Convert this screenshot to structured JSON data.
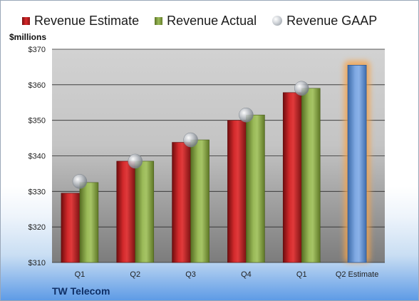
{
  "legend": {
    "estimate": "Revenue Estimate",
    "actual": "Revenue Actual",
    "gaap": "Revenue GAAP"
  },
  "unit_label": "$millions",
  "company": "TW Telecom",
  "colors": {
    "estimate": "#c0262a",
    "actual": "#8aaa4e",
    "projection": "#5b8fd6",
    "gaap_marker": "#b8bcc2",
    "projection_glow": "#f6a44c"
  },
  "chart_data": {
    "type": "bar",
    "categories": [
      "Q1",
      "Q2",
      "Q3",
      "Q4",
      "Q1",
      "Q2 Estimate"
    ],
    "series": [
      {
        "name": "Revenue Estimate",
        "values": [
          329.5,
          338.5,
          343.8,
          350.0,
          357.8,
          365.5
        ]
      },
      {
        "name": "Revenue Actual",
        "values": [
          332.5,
          338.5,
          344.5,
          351.5,
          359.0,
          null
        ]
      },
      {
        "name": "Revenue GAAP",
        "values": [
          332.8,
          338.5,
          344.5,
          351.5,
          359.0,
          null
        ]
      }
    ],
    "ylabel": "$millions",
    "ylim": [
      310,
      370
    ],
    "yticks": [
      310,
      320,
      330,
      340,
      350,
      360,
      370
    ],
    "ytick_labels": [
      "$310",
      "$320",
      "$330",
      "$340",
      "$350",
      "$360",
      "$370"
    ],
    "grid": true,
    "legend_position": "top"
  }
}
